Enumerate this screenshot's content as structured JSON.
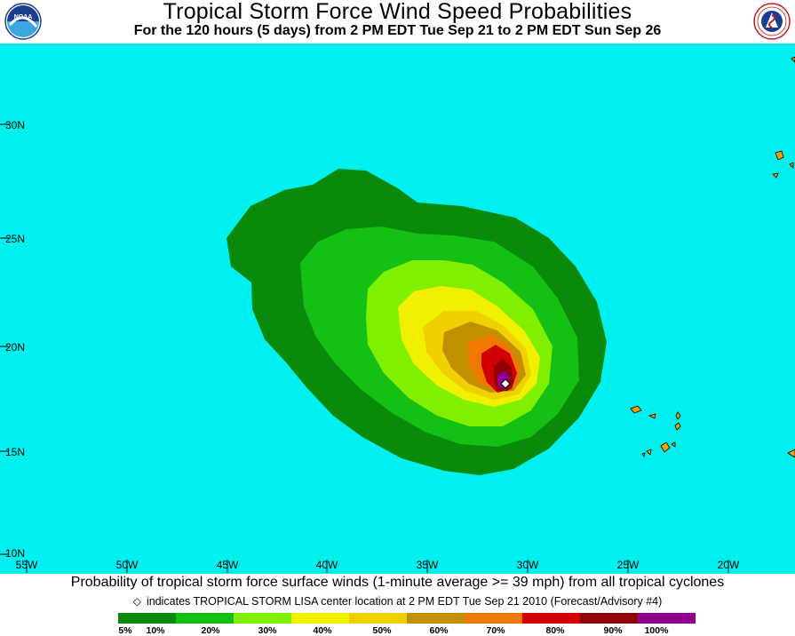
{
  "header": {
    "title": "Tropical Storm Force Wind Speed Probabilities",
    "subtitle": "For the 120 hours (5 days) from 2 PM EDT Tue Sep 21 to 2 PM EDT Sun Sep 26",
    "left_logo_text": "NOAA",
    "right_logo_text": "NATIONAL WEATHER SERVICE"
  },
  "map": {
    "ocean_color": "#00f0ef",
    "longitude_labels": [
      "55W",
      "50W",
      "45W",
      "40W",
      "35W",
      "30W",
      "25W",
      "20W"
    ],
    "latitude_labels": [
      "30N",
      "25N",
      "20N",
      "15N",
      "10N"
    ],
    "storm_center_marker": "diamond",
    "probability_colors": {
      "5-10": "#0a8a0a",
      "10-20": "#13c013",
      "20-30": "#80f000",
      "30-40": "#f0f000",
      "40-50": "#f0d000",
      "50-60": "#c09000",
      "60-70": "#f07800",
      "70-80": "#d00000",
      "80-90": "#900000",
      "90-100": "#900090"
    },
    "island_color": "#f0a000"
  },
  "footer": {
    "caption": "Probability of tropical storm force surface winds (1-minute average >= 39 mph) from all tropical cyclones",
    "note": "indicates TROPICAL STORM LISA center location at 2 PM EDT Tue Sep 21 2010 (Forecast/Advisory #4)",
    "note_icon": "◇"
  },
  "legend": {
    "colors": [
      "#0a8a0a",
      "#13c013",
      "#80f000",
      "#f0f000",
      "#f0d000",
      "#c09000",
      "#f07800",
      "#d00000",
      "#900000",
      "#900090"
    ],
    "labels": [
      "5%",
      "10%",
      "20%",
      "30%",
      "40%",
      "50%",
      "60%",
      "70%",
      "80%",
      "90%",
      "100%"
    ]
  }
}
